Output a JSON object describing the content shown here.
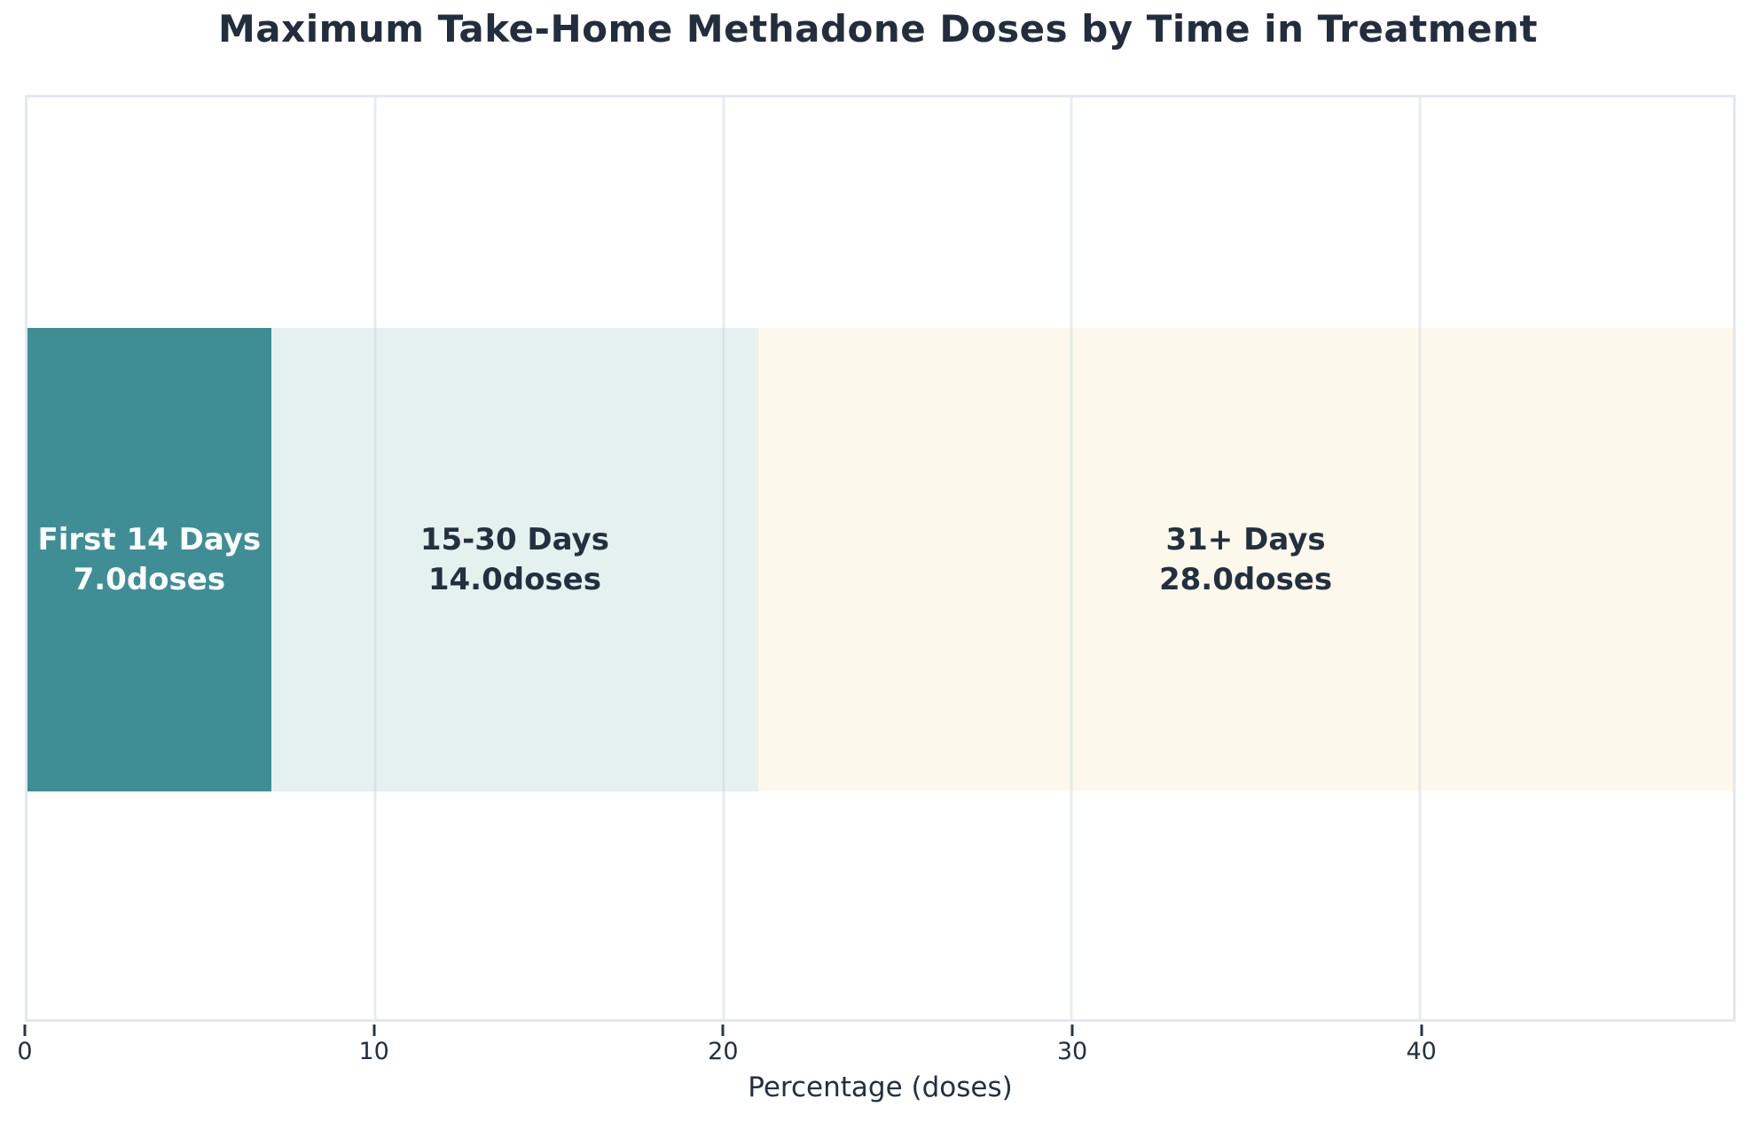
{
  "chart_data": {
    "type": "bar",
    "subtype": "single-row horizontal stacked bar",
    "title": "Maximum Take-Home Methadone Doses by Time in Treatment",
    "xlabel": "Percentage (doses)",
    "xlim": [
      0,
      49
    ],
    "xticks": [
      0,
      10,
      20,
      30,
      40
    ],
    "grid": "vertical gridlines at x ticks, drawn faintly over bars",
    "legend_position": "none",
    "segments": [
      {
        "category": "First 14 Days",
        "value": 7.0,
        "value_label": "7.0doses",
        "bar_color": "#3f8e96",
        "label_color": "#ffffff"
      },
      {
        "category": "15-30 Days",
        "value": 14.0,
        "value_label": "14.0doses",
        "bar_color": "#e5f1ef",
        "label_color": "#22303f"
      },
      {
        "category": "31+ Days",
        "value": 28.0,
        "value_label": "28.0doses",
        "bar_color": "#fdf8ec",
        "label_color": "#22303f"
      }
    ],
    "style": {
      "title_color": "#222e3e",
      "axis_text_color": "#243040",
      "spine_color": "#e2e8f2",
      "tick_mark_color": "#2a3546",
      "background_color": "#ffffff"
    }
  }
}
